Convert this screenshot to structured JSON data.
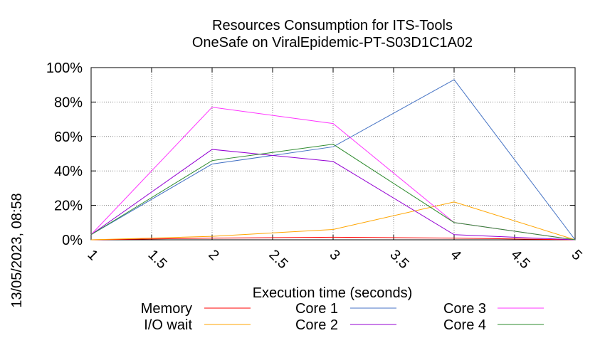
{
  "chart_data": {
    "type": "line",
    "title": "Resources Consumption for ITS-Tools",
    "subtitle": "OneSafe on ViralEpidemic-PT-S03D1C1A02",
    "xlabel": "Execution time (seconds)",
    "ylabel": "",
    "side_label": "13/05/2023, 08:58",
    "xlim": [
      1,
      5
    ],
    "ylim": [
      0,
      100
    ],
    "x_ticks": [
      "1",
      "1.5",
      "2",
      "2.5",
      "3",
      "3.5",
      "4",
      "4.5",
      "5"
    ],
    "y_ticks": [
      "0%",
      "20%",
      "40%",
      "60%",
      "80%",
      "100%"
    ],
    "grid": true,
    "legend_position": "bottom",
    "x": [
      1,
      2,
      3,
      4,
      5
    ],
    "series": [
      {
        "name": "Memory",
        "color": "#ff0000",
        "values": [
          0,
          1,
          1.5,
          1,
          0
        ]
      },
      {
        "name": "I/O wait",
        "color": "#ffa500",
        "values": [
          0,
          2,
          6,
          22,
          0
        ]
      },
      {
        "name": "Core 1",
        "color": "#4472c4",
        "values": [
          3,
          44,
          54,
          93,
          0
        ]
      },
      {
        "name": "Core 2",
        "color": "#9400d3",
        "values": [
          3,
          52.5,
          45.5,
          3,
          0
        ]
      },
      {
        "name": "Core 3",
        "color": "#ff33ff",
        "values": [
          3,
          77,
          67.5,
          10,
          0
        ]
      },
      {
        "name": "Core 4",
        "color": "#2e8b2e",
        "values": [
          3,
          46,
          55.5,
          10,
          0
        ]
      }
    ]
  }
}
